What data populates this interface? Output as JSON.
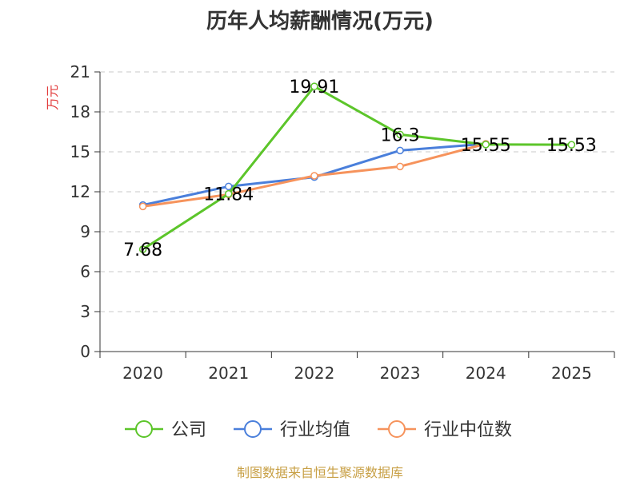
{
  "chart_data": {
    "type": "line",
    "title": "历年人均薪酬情况(万元)",
    "ylabel": "万元",
    "xlabel": "",
    "categories": [
      "2020",
      "2021",
      "2022",
      "2023",
      "2024",
      "2025"
    ],
    "ylim": [
      0,
      21
    ],
    "yticks": [
      0,
      3,
      6,
      9,
      12,
      15,
      18,
      21
    ],
    "grid": true,
    "legend_position": "bottom",
    "series": [
      {
        "name": "公司",
        "color": "#5cc52a",
        "values": [
          7.68,
          11.84,
          19.91,
          16.3,
          15.55,
          15.53
        ],
        "labels": [
          "7.68",
          "11.84",
          "19.91",
          "16.3",
          "15.55",
          "15.53"
        ]
      },
      {
        "name": "行业均值",
        "color": "#4a7fdb",
        "values": [
          11.0,
          12.4,
          13.1,
          15.1,
          15.6,
          null
        ]
      },
      {
        "name": "行业中位数",
        "color": "#f6935c",
        "values": [
          10.9,
          11.8,
          13.2,
          13.9,
          15.6,
          null
        ]
      }
    ]
  },
  "source": "制图数据来自恒生聚源数据库"
}
